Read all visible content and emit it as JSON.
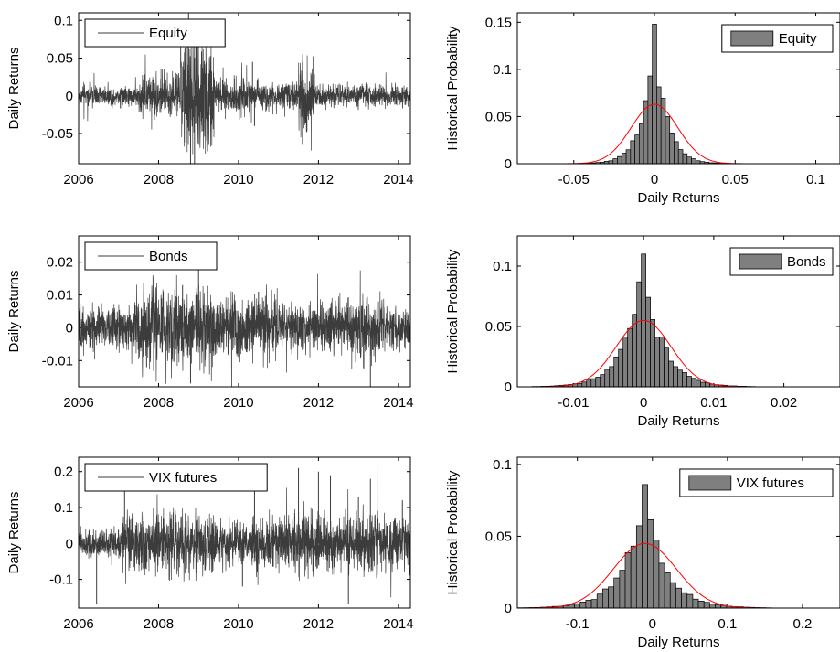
{
  "chart_data": [
    {
      "id": "equity-ts",
      "type": "line",
      "ylabel": "Daily Returns",
      "xlim": [
        2006,
        2014.3
      ],
      "ylim": [
        -0.09,
        0.11
      ],
      "xticks": [
        2006,
        2008,
        2010,
        2012,
        2014
      ],
      "xtick_labels": [
        "2006",
        "2008",
        "2010",
        "2012",
        "2014"
      ],
      "yticks": [
        -0.05,
        0,
        0.05,
        0.1
      ],
      "ytick_labels": [
        "-0.05",
        "0",
        "0.05",
        "0.1"
      ],
      "legend": {
        "label": "Equity",
        "position": "top-left"
      },
      "series_color": "#3c3c3c",
      "regimes": [
        {
          "start": 2006.0,
          "end": 2007.5,
          "amplitude": 0.007
        },
        {
          "start": 2007.5,
          "end": 2008.55,
          "amplitude": 0.015
        },
        {
          "start": 2008.55,
          "end": 2009.4,
          "amplitude": 0.045
        },
        {
          "start": 2009.4,
          "end": 2010.3,
          "amplitude": 0.014
        },
        {
          "start": 2010.3,
          "end": 2011.5,
          "amplitude": 0.01
        },
        {
          "start": 2011.5,
          "end": 2011.9,
          "amplitude": 0.03
        },
        {
          "start": 2011.9,
          "end": 2014.3,
          "amplitude": 0.008
        }
      ],
      "extremes": [
        {
          "x": 2008.75,
          "y": 0.11
        },
        {
          "x": 2008.8,
          "y": -0.09
        },
        {
          "x": 2008.9,
          "y": -0.09
        },
        {
          "x": 2008.95,
          "y": 0.09
        },
        {
          "x": 2010.35,
          "y": 0.045
        },
        {
          "x": 2011.6,
          "y": 0.045
        },
        {
          "x": 2011.6,
          "y": -0.065
        },
        {
          "x": 2010.4,
          "y": -0.04
        }
      ]
    },
    {
      "id": "equity-hist",
      "type": "bar",
      "xlabel": "Daily Returns",
      "ylabel": "Historical Probability",
      "xlim": [
        -0.085,
        0.115
      ],
      "ylim": [
        0,
        0.16
      ],
      "xticks": [
        -0.05,
        0,
        0.05,
        0.1
      ],
      "xtick_labels": [
        "-0.05",
        "0",
        "0.05",
        "0.1"
      ],
      "yticks": [
        0,
        0.05,
        0.1,
        0.15
      ],
      "ytick_labels": [
        "0",
        "0.05",
        "0.1",
        "0.15"
      ],
      "legend": {
        "label": "Equity",
        "position": "top-right"
      },
      "bar_color": "#7f7f7f",
      "curve_color": "#ff0000",
      "bins": {
        "center": 0.0,
        "width": 0.0027,
        "peak": 0.148,
        "sigma": 0.0085
      },
      "normal": {
        "peak": 0.063,
        "sigma": 0.0145
      }
    },
    {
      "id": "bonds-ts",
      "type": "line",
      "ylabel": "Daily Returns",
      "xlim": [
        2006,
        2014.3
      ],
      "ylim": [
        -0.018,
        0.028
      ],
      "xticks": [
        2006,
        2008,
        2010,
        2012,
        2014
      ],
      "xtick_labels": [
        "2006",
        "2008",
        "2010",
        "2012",
        "2014"
      ],
      "yticks": [
        -0.01,
        0,
        0.01,
        0.02
      ],
      "ytick_labels": [
        "-0.01",
        "0",
        "0.01",
        "0.02"
      ],
      "legend": {
        "label": "Bonds",
        "position": "top-left"
      },
      "series_color": "#3c3c3c",
      "regimes": [
        {
          "start": 2006.0,
          "end": 2007.4,
          "amplitude": 0.0035
        },
        {
          "start": 2007.4,
          "end": 2009.4,
          "amplitude": 0.0065
        },
        {
          "start": 2009.4,
          "end": 2011.0,
          "amplitude": 0.005
        },
        {
          "start": 2011.0,
          "end": 2012.8,
          "amplitude": 0.0042
        },
        {
          "start": 2012.8,
          "end": 2013.6,
          "amplitude": 0.005
        },
        {
          "start": 2013.6,
          "end": 2014.3,
          "amplitude": 0.0035
        }
      ],
      "extremes": [
        {
          "x": 2009.0,
          "y": 0.022
        },
        {
          "x": 2008.8,
          "y": -0.017
        },
        {
          "x": 2013.3,
          "y": -0.018
        },
        {
          "x": 2008.6,
          "y": 0.013
        },
        {
          "x": 2010.5,
          "y": 0.011
        },
        {
          "x": 2007.7,
          "y": -0.012
        }
      ]
    },
    {
      "id": "bonds-hist",
      "type": "bar",
      "xlabel": "Daily Returns",
      "ylabel": "Historical Probability",
      "xlim": [
        -0.018,
        0.028
      ],
      "ylim": [
        0,
        0.125
      ],
      "xticks": [
        -0.01,
        0,
        0.01,
        0.02
      ],
      "xtick_labels": [
        "-0.01",
        "0",
        "0.01",
        "0.02"
      ],
      "yticks": [
        0,
        0.05,
        0.1
      ],
      "ytick_labels": [
        "0",
        "0.05",
        "0.1"
      ],
      "legend": {
        "label": "Bonds",
        "position": "top-right"
      },
      "bar_color": "#7f7f7f",
      "curve_color": "#ff0000",
      "bins": {
        "center": 0.0,
        "width": 0.00065,
        "peak": 0.11,
        "sigma": 0.003
      },
      "normal": {
        "peak": 0.055,
        "sigma": 0.0039
      }
    },
    {
      "id": "vix-ts",
      "type": "line",
      "ylabel": "Daily Returns",
      "xlim": [
        2006,
        2014.3
      ],
      "ylim": [
        -0.18,
        0.24
      ],
      "xticks": [
        2006,
        2008,
        2010,
        2012,
        2014
      ],
      "xtick_labels": [
        "2006",
        "2008",
        "2010",
        "2012",
        "2014"
      ],
      "yticks": [
        -0.1,
        0,
        0.1,
        0.2
      ],
      "ytick_labels": [
        "-0.1",
        "0",
        "0.1",
        "0.2"
      ],
      "legend": {
        "label": "VIX futures",
        "position": "top-left"
      },
      "series_color": "#3c3c3c",
      "regimes": [
        {
          "start": 2006.0,
          "end": 2007.1,
          "amplitude": 0.02
        },
        {
          "start": 2007.1,
          "end": 2009.4,
          "amplitude": 0.045
        },
        {
          "start": 2009.4,
          "end": 2010.3,
          "amplitude": 0.03
        },
        {
          "start": 2010.3,
          "end": 2011.5,
          "amplitude": 0.04
        },
        {
          "start": 2011.5,
          "end": 2012.0,
          "amplitude": 0.05
        },
        {
          "start": 2012.0,
          "end": 2014.3,
          "amplitude": 0.04
        }
      ],
      "extremes": [
        {
          "x": 2011.5,
          "y": 0.21
        },
        {
          "x": 2012.0,
          "y": 0.2
        },
        {
          "x": 2012.3,
          "y": 0.19
        },
        {
          "x": 2013.3,
          "y": 0.18
        },
        {
          "x": 2010.4,
          "y": 0.18
        },
        {
          "x": 2007.15,
          "y": 0.15
        },
        {
          "x": 2006.45,
          "y": -0.17
        },
        {
          "x": 2012.75,
          "y": -0.17
        },
        {
          "x": 2010.1,
          "y": -0.12
        },
        {
          "x": 2013.0,
          "y": 0.13
        },
        {
          "x": 2014.1,
          "y": 0.12
        }
      ]
    },
    {
      "id": "vix-hist",
      "type": "bar",
      "xlabel": "Daily Returns",
      "ylabel": "Historical Probability",
      "xlim": [
        -0.18,
        0.25
      ],
      "ylim": [
        0,
        0.105
      ],
      "xticks": [
        -0.1,
        0,
        0.1,
        0.2
      ],
      "xtick_labels": [
        "-0.1",
        "0",
        "0.1",
        "0.2"
      ],
      "yticks": [
        0,
        0.05,
        0.1
      ],
      "ytick_labels": [
        "0",
        "0.05",
        "0.1"
      ],
      "legend": {
        "label": "VIX futures",
        "position": "top-right"
      },
      "bar_color": "#7f7f7f",
      "curve_color": "#ff0000",
      "bins": {
        "center": -0.01,
        "width": 0.0075,
        "peak": 0.086,
        "sigma": 0.032
      },
      "normal": {
        "peak": 0.045,
        "sigma": 0.042
      }
    }
  ]
}
